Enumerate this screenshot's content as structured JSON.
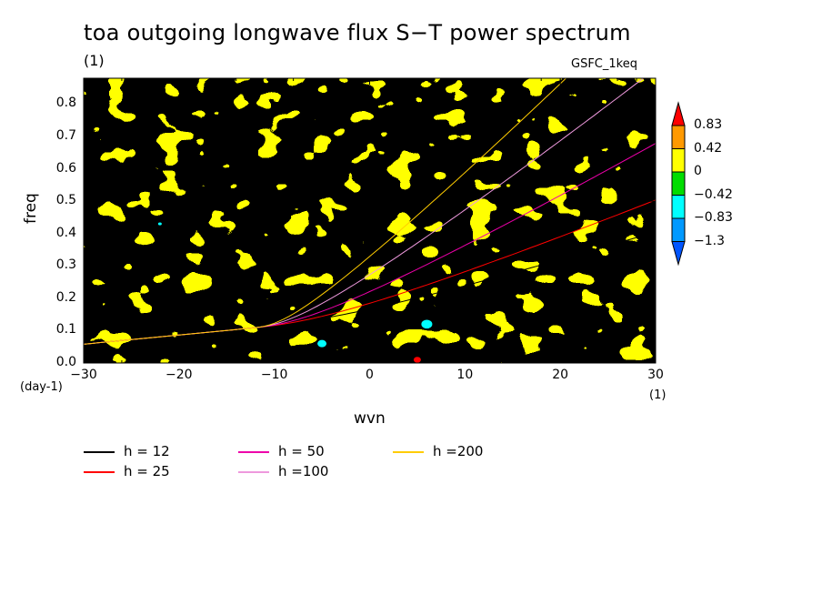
{
  "title": "toa outgoing longwave flux S−T power spectrum",
  "unit_label": "(1)",
  "tag": "GSFC_1keq",
  "chart_data": {
    "type": "heatmap",
    "xlabel": "wvn",
    "ylabel": "freq",
    "x_unit": "(1)",
    "y_unit": "(day-1)",
    "xlim": [
      -30,
      30
    ],
    "ylim": [
      0,
      0.88
    ],
    "x_ticks": [
      "−30",
      "−20",
      "−10",
      "0",
      "10",
      "20",
      "30"
    ],
    "y_ticks": [
      "0.0",
      "0.1",
      "0.2",
      "0.3",
      "0.4",
      "0.5",
      "0.6",
      "0.7",
      "0.8"
    ],
    "colorbar": {
      "levels": [
        "0.83",
        "0.42",
        "0",
        "−0.42",
        "−0.83",
        "−1.3"
      ],
      "colors": [
        "#ff0000",
        "#ff9900",
        "#ffff00",
        "#00dd00",
        "#00ffff",
        "#0099ff",
        "#0055ff"
      ]
    },
    "series": [
      {
        "name": "h = 12",
        "color": "#000000",
        "equivalent_depth": 12
      },
      {
        "name": "h = 25",
        "color": "#ff0000",
        "equivalent_depth": 25
      },
      {
        "name": "h = 50",
        "color": "#ee00aa",
        "equivalent_depth": 50
      },
      {
        "name": "h =100",
        "color": "#ee99dd",
        "equivalent_depth": 100
      },
      {
        "name": "h =200",
        "color": "#ffcc00",
        "equivalent_depth": 200
      }
    ]
  }
}
